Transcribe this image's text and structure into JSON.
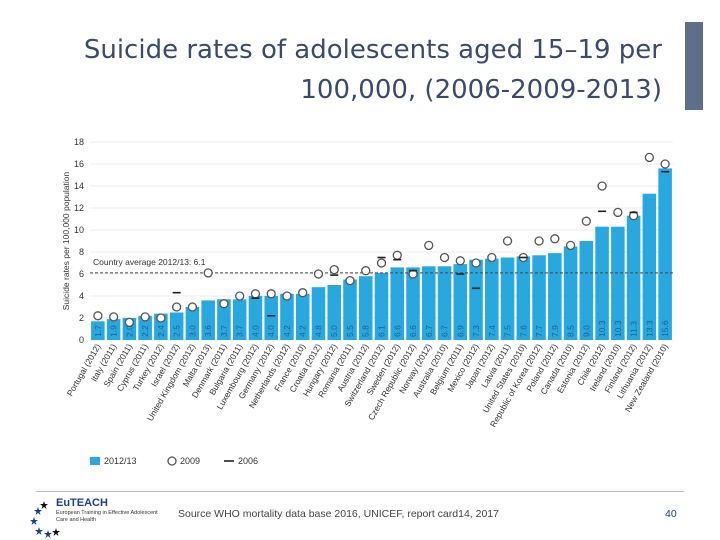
{
  "slide": {
    "title_line1": "Suicide rates of adolescents aged 15–19 per",
    "title_line2": "100,000, (2006-2009-2013)",
    "source": "Source WHO mortality data base 2016, UNICEF, report card14, 2017",
    "page_number": "40",
    "logo_title": "EuTEACH",
    "logo_subtitle": "European Training in Effective Adolescent Care and Health",
    "accent_color": "#5f6f8a"
  },
  "chart_data": {
    "type": "bar",
    "ylabel": "Suicide rates per 100,000 population",
    "ylim": [
      0,
      18
    ],
    "yticks": [
      0,
      2,
      4,
      6,
      8,
      10,
      12,
      14,
      16,
      18
    ],
    "categories": [
      "Portugal (2012)",
      "Italy (2011)",
      "Spain (2011)",
      "Cyprus (2011)",
      "Turkey (2012)",
      "Israel (2012)",
      "United Kingdom (2012)",
      "Malta (2013)",
      "Denmark (2011)",
      "Bulgaria (2011)",
      "Luxembourg (2012)",
      "Germany (2012)",
      "Netherlands (2012)",
      "France (2010)",
      "Croatia (2012)",
      "Hungary (2012)",
      "Romania (2011)",
      "Austria (2012)",
      "Switzerland (2012)",
      "Sweden (2012)",
      "Czech Republic (2012)",
      "Norway (2012)",
      "Australia (2010)",
      "Belgium (2011)",
      "Mexico (2012)",
      "Japan (2012)",
      "Latvia (2011)",
      "United States (2010)",
      "Republic of Korea (2012)",
      "Poland (2012)",
      "Canada (2010)",
      "Estonia (2012)",
      "Chile (2012)",
      "Ireland (2010)",
      "Finland (2012)",
      "Lithuania (2012)",
      "New Zealand (2010)"
    ],
    "bar_labels": [
      "1.7",
      "1.9",
      "2.0",
      "2.2",
      "2.4",
      "2.5",
      "3.0",
      "3.6",
      "3.7",
      "3.7",
      "4.0",
      "4.0",
      "4.2",
      "4.2",
      "4.8",
      "5.0",
      "5.5",
      "5.8",
      "6.1",
      "6.6",
      "6.6",
      "6.7",
      "6.7",
      "6.9",
      "7.3",
      "7.4",
      "7.5",
      "7.6",
      "7.7",
      "7.9",
      "8.5",
      "9.0",
      "10.3",
      "10.3",
      "11.3",
      "13.3",
      "15.6"
    ],
    "series": [
      {
        "name": "2012/13",
        "color": "#29a8e0",
        "values": [
          1.7,
          1.9,
          2.0,
          2.2,
          2.4,
          2.5,
          3.0,
          3.6,
          3.7,
          3.7,
          4.0,
          4.0,
          4.2,
          4.2,
          4.8,
          5.0,
          5.5,
          5.8,
          6.1,
          6.6,
          6.6,
          6.7,
          6.7,
          6.9,
          7.3,
          7.4,
          7.5,
          7.6,
          7.7,
          7.9,
          8.5,
          9.0,
          10.3,
          10.3,
          11.3,
          13.3,
          15.6
        ]
      },
      {
        "name": "2009",
        "values": [
          2.2,
          2.1,
          1.6,
          2.1,
          2.0,
          3.0,
          3.0,
          6.1,
          3.3,
          4.0,
          4.2,
          4.2,
          4.0,
          4.3,
          6.0,
          6.4,
          5.4,
          6.3,
          7.0,
          7.7,
          6.0,
          8.6,
          7.5,
          7.2,
          7.0,
          7.5,
          9.0,
          7.5,
          9.0,
          9.2,
          8.6,
          10.8,
          14.0,
          11.6,
          11.3,
          16.6,
          16.0
        ]
      },
      {
        "name": "2006",
        "values": [
          null,
          null,
          null,
          null,
          null,
          4.3,
          null,
          null,
          null,
          null,
          3.8,
          2.2,
          null,
          null,
          null,
          5.9,
          null,
          null,
          7.5,
          7.3,
          6.3,
          null,
          null,
          6.0,
          4.7,
          null,
          null,
          7.5,
          null,
          null,
          null,
          null,
          11.7,
          null,
          11.6,
          null,
          15.3
        ]
      }
    ],
    "reference_line": {
      "label": "Country average 2012/13: 6.1",
      "value": 6.1
    },
    "legend": {
      "position": "bottom-left",
      "entries": [
        "2012/13",
        "2009",
        "2006"
      ]
    }
  }
}
